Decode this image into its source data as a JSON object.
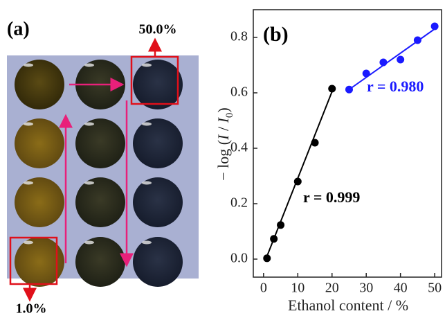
{
  "photo": {
    "panel_label": "(a)",
    "top_label": "50.0%",
    "bottom_label": "1.0%"
  },
  "chart_data": {
    "type": "scatter",
    "panel_label": "(b)",
    "x_label": "Ethanol content / %",
    "y_label": [
      "− log (",
      "I",
      " / ",
      "I",
      "0",
      ")"
    ],
    "xlim": [
      -3,
      52
    ],
    "xticks": [
      0,
      10,
      20,
      30,
      40,
      50
    ],
    "ylim": [
      -0.065,
      0.9
    ],
    "yticks": [
      {
        "value": 0,
        "label": "0.0"
      },
      0.2,
      0.4,
      0.6,
      0.8
    ],
    "series": [
      {
        "color": "#000000",
        "label": "r = 0.999",
        "x": [
          1,
          3,
          5,
          10,
          15,
          20
        ],
        "values": [
          0.003,
          0.073,
          0.123,
          0.28,
          0.42,
          0.615
        ],
        "fit_x": [
          0.5,
          20.5
        ],
        "fit_values": [
          -0.005,
          0.62
        ]
      },
      {
        "color": "#1a1aff",
        "label": "r = 0.980",
        "x": [
          25,
          30,
          35,
          40,
          45,
          50
        ],
        "values": [
          0.612,
          0.67,
          0.71,
          0.72,
          0.79,
          0.84
        ],
        "fit_x": [
          25,
          50.5
        ],
        "fit_values": [
          0.612,
          0.835
        ]
      }
    ]
  }
}
